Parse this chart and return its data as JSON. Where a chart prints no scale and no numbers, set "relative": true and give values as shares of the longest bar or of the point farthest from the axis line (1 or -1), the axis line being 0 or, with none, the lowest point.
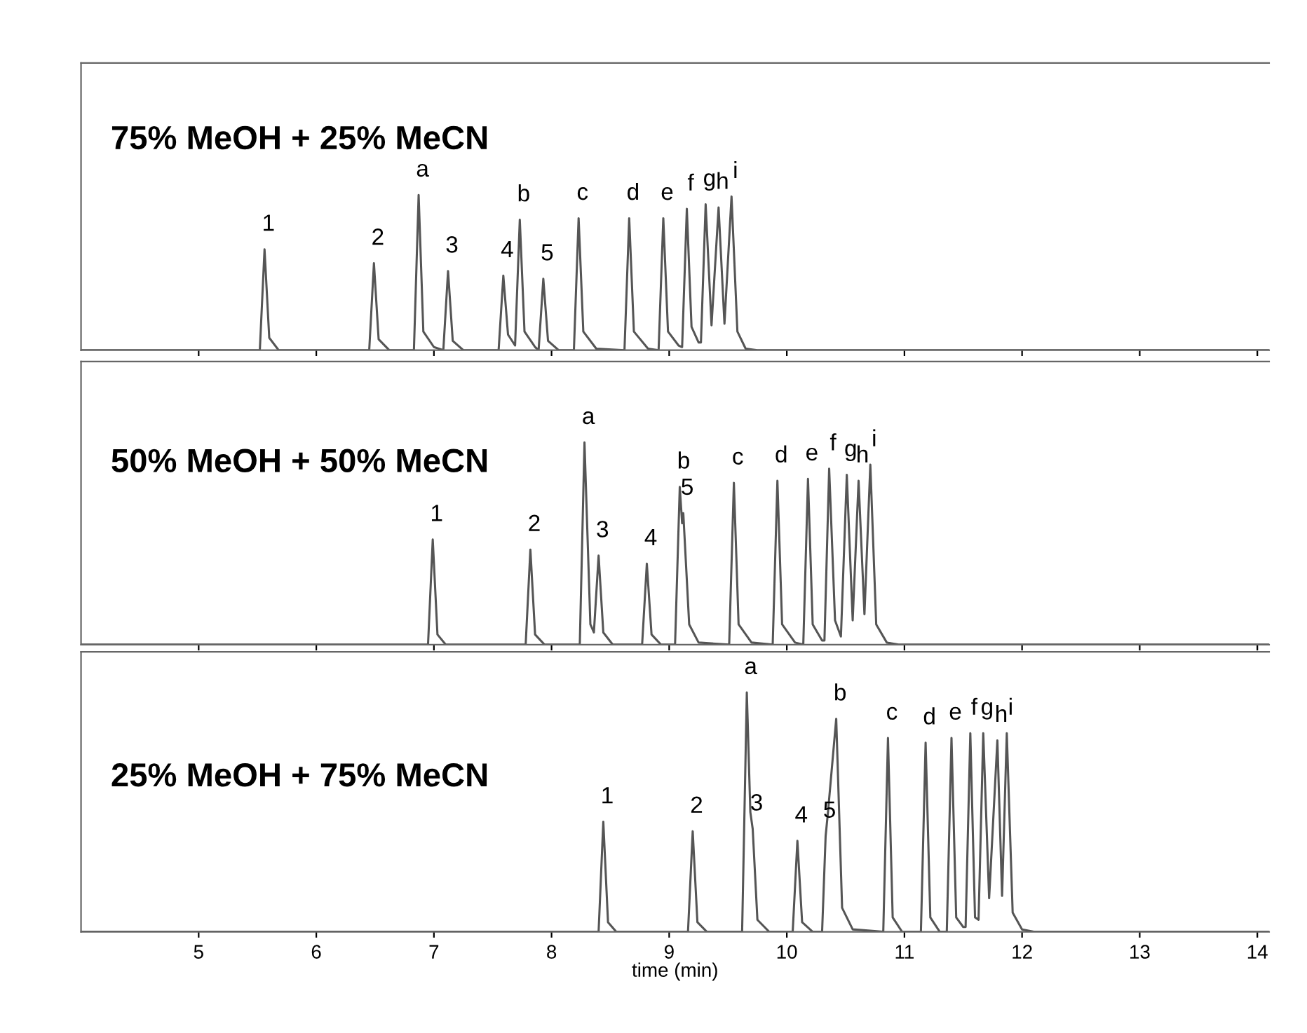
{
  "chart_data": [
    {
      "type": "line",
      "relative": true,
      "title": "75% MeOH + 25% MeCN",
      "xlim": [
        4.0,
        14.1
      ],
      "xticks": [
        5,
        6,
        7,
        8,
        9,
        10,
        11,
        12,
        13,
        14
      ],
      "tick_labels": false,
      "grid": false,
      "x": [
        4.0,
        5.52,
        5.56,
        5.6,
        5.68,
        6.45,
        6.49,
        6.53,
        6.62,
        6.83,
        6.87,
        6.91,
        7.0,
        7.08,
        7.12,
        7.16,
        7.25,
        7.55,
        7.59,
        7.63,
        7.69,
        7.73,
        7.77,
        7.86,
        7.89,
        7.93,
        7.97,
        8.06,
        8.19,
        8.23,
        8.27,
        8.38,
        8.62,
        8.66,
        8.7,
        8.82,
        8.91,
        8.95,
        8.99,
        9.08,
        9.11,
        9.15,
        9.19,
        9.25,
        9.27,
        9.31,
        9.36,
        9.42,
        9.47,
        9.53,
        9.58,
        9.65,
        9.75,
        14.1
      ],
      "series": [
        {
          "color": "#555555",
          "values": [
            0,
            0,
            0.65,
            0.08,
            0,
            0,
            0.56,
            0.07,
            0,
            0,
            1.0,
            0.12,
            0.02,
            0,
            0.51,
            0.06,
            0,
            0,
            0.48,
            0.1,
            0.03,
            0.84,
            0.12,
            0.02,
            0,
            0.46,
            0.06,
            0,
            0,
            0.85,
            0.12,
            0.01,
            0,
            0.85,
            0.12,
            0.01,
            0,
            0.85,
            0.12,
            0.03,
            0.02,
            0.91,
            0.15,
            0.05,
            0.05,
            0.94,
            0.16,
            0.92,
            0.17,
            0.99,
            0.12,
            0.01,
            0,
            0
          ]
        }
      ],
      "annotations": [
        {
          "text": "1",
          "x": 5.56,
          "y": 0.65
        },
        {
          "text": "2",
          "x": 6.49,
          "y": 0.56
        },
        {
          "text": "a",
          "x": 6.87,
          "y": 1.0
        },
        {
          "text": "3",
          "x": 7.12,
          "y": 0.51
        },
        {
          "text": "4",
          "x": 7.59,
          "y": 0.48
        },
        {
          "text": "b",
          "x": 7.73,
          "y": 0.84
        },
        {
          "text": "5",
          "x": 7.93,
          "y": 0.46
        },
        {
          "text": "c",
          "x": 8.23,
          "y": 0.85
        },
        {
          "text": "d",
          "x": 8.66,
          "y": 0.85
        },
        {
          "text": "e",
          "x": 8.95,
          "y": 0.85
        },
        {
          "text": "f",
          "x": 9.15,
          "y": 0.91
        },
        {
          "text": "g",
          "x": 9.31,
          "y": 0.94
        },
        {
          "text": "h",
          "x": 9.42,
          "y": 0.92
        },
        {
          "text": "i",
          "x": 9.53,
          "y": 0.99
        }
      ]
    },
    {
      "type": "line",
      "relative": true,
      "title": "50% MeOH + 50% MeCN",
      "xlim": [
        4.0,
        14.1
      ],
      "xticks": [
        5,
        6,
        7,
        8,
        9,
        10,
        11,
        12,
        13,
        14
      ],
      "tick_labels": false,
      "grid": false,
      "x": [
        4.0,
        6.95,
        6.99,
        7.03,
        7.1,
        7.78,
        7.82,
        7.86,
        7.94,
        8.24,
        8.28,
        8.33,
        8.36,
        8.4,
        8.44,
        8.52,
        8.77,
        8.81,
        8.85,
        8.93,
        9.05,
        9.09,
        9.11,
        9.12,
        9.17,
        9.25,
        9.51,
        9.55,
        9.59,
        9.7,
        9.88,
        9.92,
        9.96,
        10.07,
        10.14,
        10.18,
        10.22,
        10.3,
        10.32,
        10.36,
        10.41,
        10.46,
        10.51,
        10.56,
        10.61,
        10.66,
        10.71,
        10.76,
        10.85,
        10.95,
        14.1
      ],
      "series": [
        {
          "color": "#555555",
          "values": [
            0,
            0,
            0.52,
            0.05,
            0,
            0,
            0.47,
            0.05,
            0,
            0,
            1.0,
            0.1,
            0.06,
            0.44,
            0.06,
            0,
            0,
            0.4,
            0.05,
            0,
            0,
            0.78,
            0.6,
            0.65,
            0.1,
            0.01,
            0,
            0.8,
            0.1,
            0.01,
            0,
            0.81,
            0.1,
            0.01,
            0,
            0.82,
            0.1,
            0.02,
            0.02,
            0.87,
            0.12,
            0.04,
            0.84,
            0.12,
            0.81,
            0.15,
            0.89,
            0.1,
            0.01,
            0,
            0
          ]
        }
      ],
      "annotations": [
        {
          "text": "1",
          "x": 6.99,
          "y": 0.52
        },
        {
          "text": "2",
          "x": 7.82,
          "y": 0.47
        },
        {
          "text": "a",
          "x": 8.28,
          "y": 1.0
        },
        {
          "text": "3",
          "x": 8.4,
          "y": 0.44
        },
        {
          "text": "4",
          "x": 8.81,
          "y": 0.4
        },
        {
          "text": "b",
          "x": 9.09,
          "y": 0.78
        },
        {
          "text": "5",
          "x": 9.12,
          "y": 0.65
        },
        {
          "text": "c",
          "x": 9.55,
          "y": 0.8
        },
        {
          "text": "d",
          "x": 9.92,
          "y": 0.81
        },
        {
          "text": "e",
          "x": 10.18,
          "y": 0.82
        },
        {
          "text": "f",
          "x": 10.36,
          "y": 0.87
        },
        {
          "text": "g",
          "x": 10.51,
          "y": 0.84
        },
        {
          "text": "h",
          "x": 10.61,
          "y": 0.81
        },
        {
          "text": "i",
          "x": 10.71,
          "y": 0.89
        }
      ]
    },
    {
      "type": "line",
      "relative": true,
      "title": "25% MeOH + 75% MeCN",
      "xlabel": "time (min)",
      "xlim": [
        4.0,
        14.1
      ],
      "xticks": [
        5,
        6,
        7,
        8,
        9,
        10,
        11,
        12,
        13,
        14
      ],
      "tick_labels": "x",
      "grid": false,
      "x": [
        4.0,
        8.4,
        8.44,
        8.48,
        8.55,
        9.16,
        9.2,
        9.24,
        9.32,
        9.62,
        9.66,
        9.69,
        9.71,
        9.75,
        9.85,
        10.05,
        10.09,
        10.13,
        10.22,
        10.3,
        10.33,
        10.35,
        10.42,
        10.47,
        10.56,
        10.82,
        10.86,
        10.9,
        10.98,
        11.14,
        11.18,
        11.22,
        11.3,
        11.36,
        11.4,
        11.44,
        11.5,
        11.52,
        11.56,
        11.6,
        11.63,
        11.67,
        11.72,
        11.79,
        11.83,
        11.87,
        11.92,
        12.0,
        12.1,
        14.1
      ],
      "series": [
        {
          "color": "#555555",
          "values": [
            0,
            0,
            0.46,
            0.04,
            0,
            0,
            0.42,
            0.04,
            0,
            0,
            1.0,
            0.5,
            0.43,
            0.05,
            0,
            0,
            0.38,
            0.04,
            0,
            0,
            0.4,
            0.5,
            0.89,
            0.1,
            0.01,
            0,
            0.81,
            0.06,
            0,
            0,
            0.79,
            0.06,
            0,
            0,
            0.81,
            0.06,
            0.02,
            0.02,
            0.83,
            0.06,
            0.05,
            0.83,
            0.14,
            0.8,
            0.15,
            0.83,
            0.08,
            0.01,
            0,
            0
          ]
        }
      ],
      "annotations": [
        {
          "text": "1",
          "x": 8.44,
          "y": 0.46
        },
        {
          "text": "2",
          "x": 9.2,
          "y": 0.42
        },
        {
          "text": "a",
          "x": 9.66,
          "y": 1.0
        },
        {
          "text": "3",
          "x": 9.71,
          "y": 0.43
        },
        {
          "text": "4",
          "x": 10.09,
          "y": 0.38
        },
        {
          "text": "5",
          "x": 10.33,
          "y": 0.4
        },
        {
          "text": "b",
          "x": 10.42,
          "y": 0.89
        },
        {
          "text": "c",
          "x": 10.86,
          "y": 0.81
        },
        {
          "text": "d",
          "x": 11.18,
          "y": 0.79
        },
        {
          "text": "e",
          "x": 11.4,
          "y": 0.81
        },
        {
          "text": "f",
          "x": 11.56,
          "y": 0.83
        },
        {
          "text": "g",
          "x": 11.67,
          "y": 0.83
        },
        {
          "text": "h",
          "x": 11.79,
          "y": 0.8
        },
        {
          "text": "i",
          "x": 11.87,
          "y": 0.83
        }
      ]
    }
  ]
}
